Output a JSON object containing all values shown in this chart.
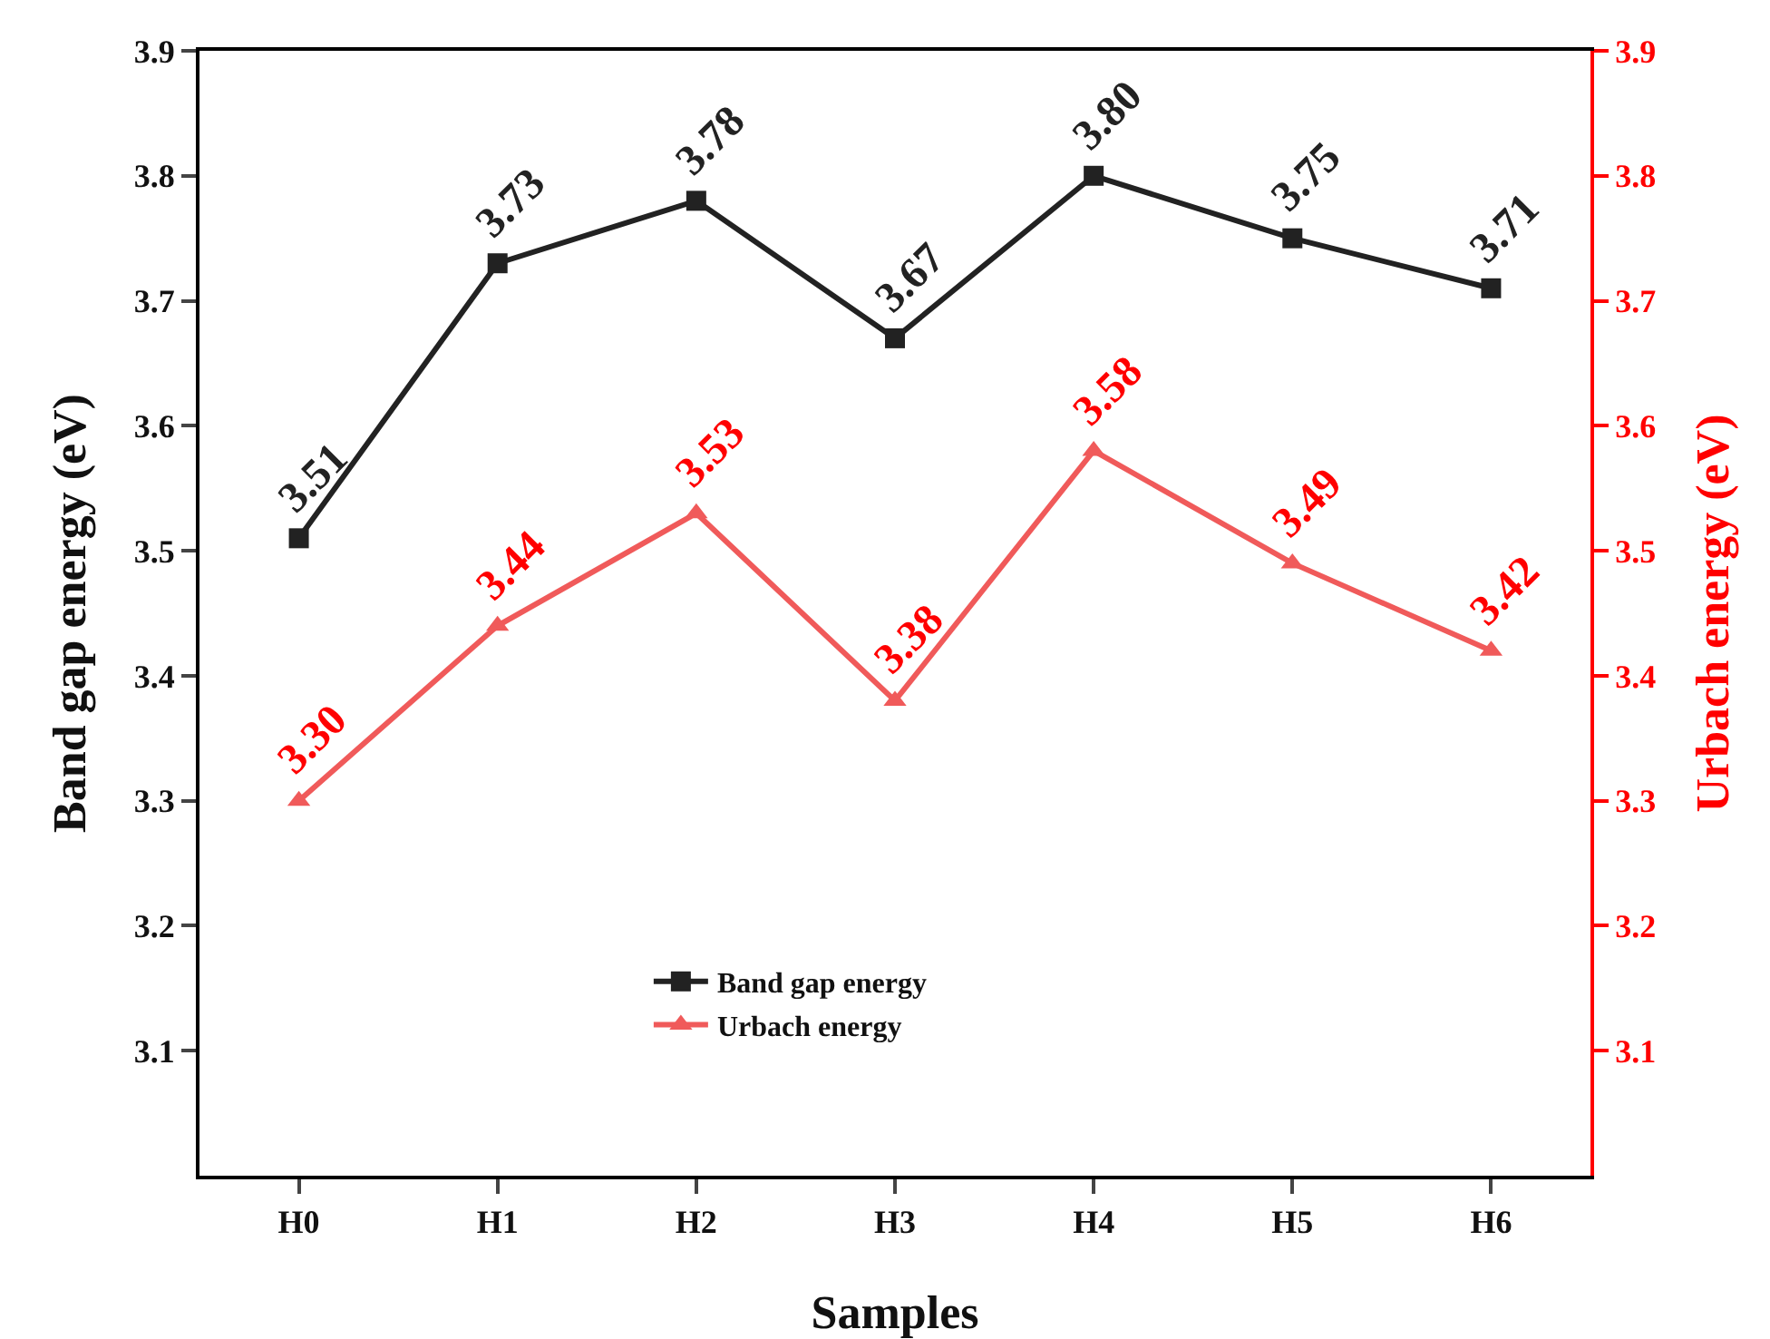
{
  "chart_data": {
    "type": "line",
    "xlabel": "Samples",
    "ylabel": "Band gap energy (eV)",
    "y2label": "Urbach energy (eV)",
    "categories": [
      "H0",
      "H1",
      "H2",
      "H3",
      "H4",
      "H5",
      "H6"
    ],
    "series": [
      {
        "name": "Band gap energy",
        "color": "#222222",
        "marker": "square",
        "values": [
          3.51,
          3.73,
          3.78,
          3.67,
          3.8,
          3.75,
          3.71
        ],
        "value_labels": [
          "3.51",
          "3.73",
          "3.78",
          "3.67",
          "3.80",
          "3.75",
          "3.71"
        ]
      },
      {
        "name": "Urbach energy",
        "color": "#f05a5a",
        "marker": "triangle",
        "axis": "y2",
        "values": [
          3.3,
          3.44,
          3.53,
          3.38,
          3.58,
          3.49,
          3.42
        ],
        "value_labels": [
          "3.30",
          "3.44",
          "3.53",
          "3.38",
          "3.58",
          "3.49",
          "3.42"
        ]
      }
    ],
    "ylim": [
      3.0,
      3.9
    ],
    "yticks": [
      3.1,
      3.2,
      3.3,
      3.4,
      3.5,
      3.6,
      3.7,
      3.8,
      3.9
    ],
    "y2lim": [
      3.0,
      3.9
    ],
    "y2ticks": [
      3.1,
      3.2,
      3.3,
      3.4,
      3.5,
      3.6,
      3.7,
      3.8,
      3.9
    ],
    "grid": false,
    "legend": "bottom"
  }
}
